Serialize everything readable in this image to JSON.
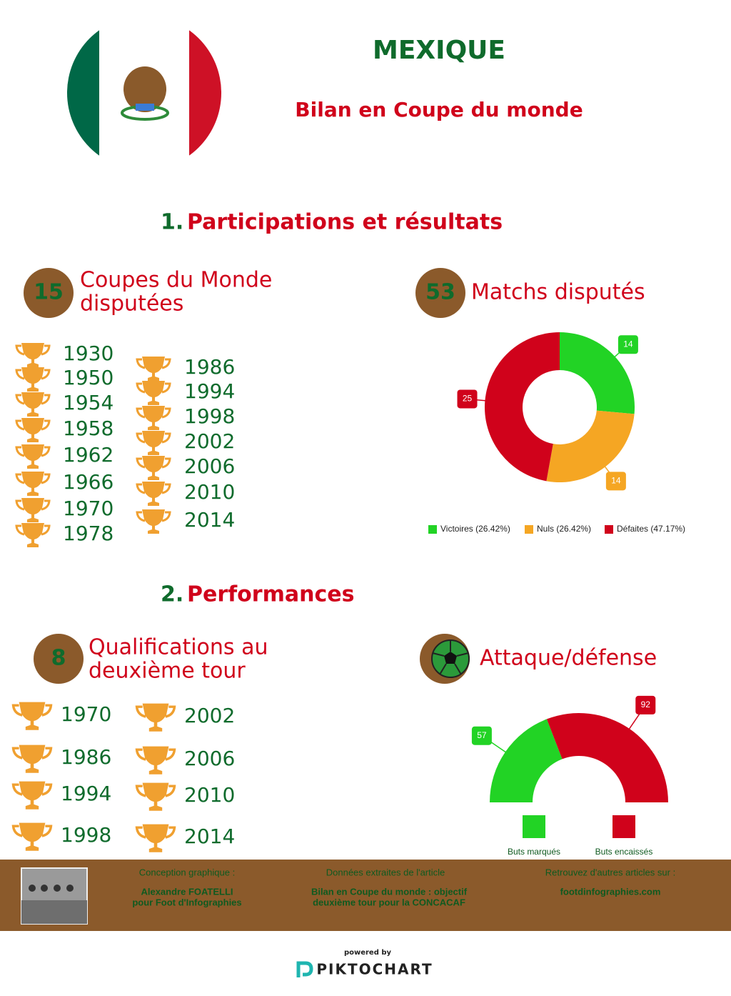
{
  "header": {
    "title": "MEXIQUE",
    "subtitle": "Bilan en Coupe du monde"
  },
  "sections": [
    {
      "number": "1.",
      "title": "Participations et résultats"
    },
    {
      "number": "2.",
      "title": "Performances"
    }
  ],
  "participations": {
    "count": 15,
    "label_lines": [
      "Coupes du Monde",
      "disputées"
    ],
    "years": [
      1930,
      1950,
      1954,
      1958,
      1962,
      1966,
      1970,
      1978,
      1986,
      1994,
      1998,
      2002,
      2006,
      2010,
      2014
    ]
  },
  "matches": {
    "count": 53,
    "label": "Matchs disputés"
  },
  "second_round": {
    "count": 8,
    "label_lines": [
      "Qualifications au",
      "deuxième tour"
    ],
    "years": [
      1970,
      1986,
      1994,
      1998,
      2002,
      2006,
      2010,
      2014
    ]
  },
  "attack_defense": {
    "label": "Attaque/défense"
  },
  "chart_data": [
    {
      "type": "pie",
      "donut": true,
      "categories": [
        "Victoires (26.42%)",
        "Nuls (26.42%)",
        "Défaites (47.17%)"
      ],
      "values": [
        14,
        14,
        25
      ],
      "colors": [
        "#22d325",
        "#f5a623",
        "#d0021b"
      ]
    },
    {
      "type": "pie",
      "donut": true,
      "semicircle": true,
      "categories": [
        "Buts marqués",
        "Buts encaissés"
      ],
      "values": [
        57,
        92
      ],
      "colors": [
        "#22d325",
        "#d0021b"
      ]
    }
  ],
  "footer": {
    "design_label": "Conception graphique :",
    "design_lines": [
      "Alexandre FOATELLI",
      "pour Foot d'Infographies"
    ],
    "source_label": "Données extraites de l'article",
    "source_lines": [
      "Bilan en Coupe du monde : objectif",
      "deuxième tour pour la CONCACAF"
    ],
    "more_label": "Retrouvez d'autres articles sur :",
    "site": "footdinfographies.com"
  },
  "powered": {
    "by": "powered by",
    "brand": "PIKTOCHART"
  }
}
